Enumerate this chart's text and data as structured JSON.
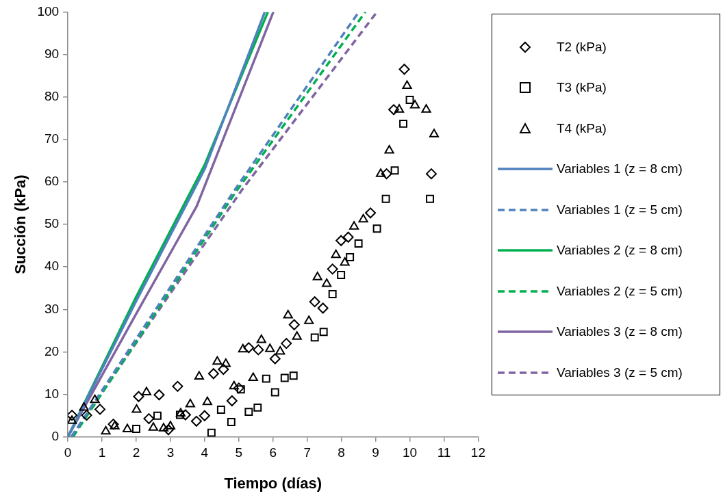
{
  "chart_data": {
    "type": "scatter",
    "xlabel": "Tiempo (días)",
    "ylabel": "Succión (kPa)",
    "xlim": [
      0,
      12
    ],
    "xticks": [
      0,
      1,
      2,
      3,
      4,
      5,
      6,
      7,
      8,
      9,
      10,
      11,
      12
    ],
    "ylim": [
      0,
      100
    ],
    "yticks": [
      0,
      10,
      20,
      30,
      40,
      50,
      60,
      70,
      80,
      90,
      100
    ],
    "legend": "right",
    "grid": false,
    "series": [
      {
        "name": "T2 (kPa)",
        "marker": "diamond",
        "color": "#000000",
        "x": [
          0.12,
          0.55,
          0.94,
          1.33,
          2.07,
          2.37,
          2.67,
          2.94,
          3.21,
          3.44,
          3.76,
          4.0,
          4.26,
          4.55,
          4.8,
          5.0,
          5.29,
          5.57,
          6.06,
          6.39,
          6.62,
          7.22,
          7.46,
          7.74,
          7.99,
          8.2,
          8.85,
          9.32,
          9.53,
          9.84,
          10.63
        ],
        "values": [
          5.1,
          5.1,
          6.5,
          3,
          9.5,
          4.3,
          9.9,
          1.7,
          11.9,
          5.2,
          3.7,
          5,
          14.9,
          15.9,
          8.5,
          11.5,
          21,
          20.5,
          18.4,
          22,
          26.4,
          31.8,
          30.3,
          39.5,
          46.2,
          47,
          52.7,
          61.9,
          77,
          86.5,
          61.9
        ]
      },
      {
        "name": "T3 (kPa)",
        "marker": "square",
        "color": "#000000",
        "x": [
          2.0,
          2.62,
          3.28,
          4.2,
          4.48,
          4.78,
          5.06,
          5.29,
          5.55,
          5.8,
          6.06,
          6.34,
          6.6,
          7.22,
          7.48,
          7.74,
          7.99,
          8.25,
          8.5,
          9.04,
          9.3,
          9.56,
          9.81,
          10.0,
          10.59
        ],
        "values": [
          1.9,
          5,
          5.2,
          1,
          6.4,
          3.5,
          11.2,
          5.9,
          6.9,
          13.7,
          10.5,
          13.9,
          14.4,
          23.4,
          24.7,
          33.6,
          38.1,
          42.3,
          45.5,
          49,
          56,
          62.7,
          73.7,
          79.3,
          56
        ]
      },
      {
        "name": "T4 (kPa)",
        "marker": "triangle",
        "color": "#000000",
        "x": [
          0.12,
          0.47,
          0.79,
          1.11,
          1.37,
          1.74,
          2.01,
          2.3,
          2.5,
          2.8,
          3.0,
          3.3,
          3.58,
          3.84,
          4.08,
          4.37,
          4.62,
          4.86,
          5.12,
          5.42,
          5.66,
          5.91,
          6.21,
          6.44,
          6.7,
          7.05,
          7.3,
          7.57,
          7.84,
          8.1,
          8.37,
          8.64,
          9.15,
          9.4,
          9.69,
          9.92,
          10.15,
          10.48,
          10.71
        ],
        "values": [
          3.8,
          6.9,
          8.7,
          1.3,
          2.5,
          1.8,
          6.4,
          10.5,
          2.2,
          2,
          2.5,
          5.5,
          7.7,
          14.2,
          8.2,
          17.7,
          17.2,
          11.9,
          20.6,
          13.9,
          22.8,
          20.7,
          20.1,
          28.6,
          23.6,
          27.3,
          37.6,
          36,
          42.8,
          41,
          49.5,
          51.2,
          61.9,
          67.4,
          77,
          82.6,
          78,
          77,
          71.2
        ]
      },
      {
        "name": "Variables 1 (z = 8 cm)",
        "type": "line",
        "line_style": "solid",
        "marker": "none",
        "color": "#4f81bd",
        "x": [
          0,
          2,
          4,
          5.76
        ],
        "values": [
          0,
          32,
          63,
          100
        ]
      },
      {
        "name": "Variables 1 (z = 5 cm)",
        "type": "line",
        "line_style": "dashed",
        "marker": "none",
        "color": "#4f81bd",
        "x": [
          0.1,
          4.87,
          8.51
        ],
        "values": [
          0,
          58,
          100
        ]
      },
      {
        "name": "Variables 2 (z = 8 cm)",
        "type": "line",
        "line_style": "solid",
        "marker": "none",
        "color": "#00b050",
        "x": [
          0,
          2,
          4,
          5.85
        ],
        "values": [
          0,
          33,
          64,
          100
        ]
      },
      {
        "name": "Variables 2 (z = 5 cm)",
        "type": "line",
        "line_style": "dashed",
        "marker": "none",
        "color": "#00b050",
        "x": [
          0.15,
          4.9,
          8.7
        ],
        "values": [
          0,
          57.5,
          100
        ]
      },
      {
        "name": "Variables 3 (z = 8 cm)",
        "type": "line",
        "line_style": "solid",
        "marker": "none",
        "color": "#8064a2",
        "x": [
          0,
          2,
          3.77,
          6.01
        ],
        "values": [
          0,
          29,
          54.3,
          100
        ]
      },
      {
        "name": "Variables 3 (z = 5 cm)",
        "type": "line",
        "line_style": "dashed",
        "marker": "none",
        "color": "#8064a2",
        "x": [
          0.1,
          5.08,
          9.04
        ],
        "values": [
          0,
          58,
          100
        ]
      }
    ]
  }
}
